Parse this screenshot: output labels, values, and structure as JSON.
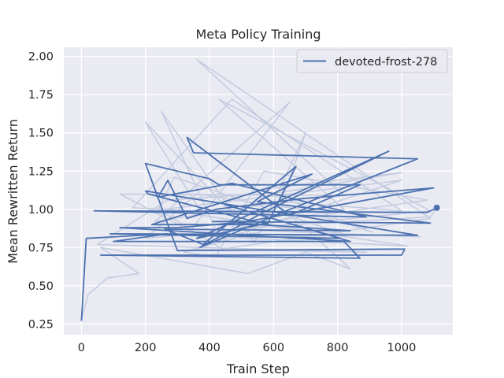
{
  "chart_data": {
    "type": "line",
    "title": "Meta Policy Training",
    "xlabel": "Train Step",
    "ylabel": "Mean Rewritten Return",
    "xlim": [
      -55,
      1160
    ],
    "ylim": [
      0.18,
      2.06
    ],
    "xticks": [
      "0",
      "200",
      "400",
      "600",
      "800",
      "1000"
    ],
    "yticks": [
      "0.25",
      "0.50",
      "0.75",
      "1.00",
      "1.25",
      "1.50",
      "1.75",
      "2.00"
    ],
    "grid": true,
    "legend_position": "top-right",
    "colors": {
      "series": "#4c72b0",
      "raw": "#c3cbe0",
      "background": "#eaeaf2",
      "grid": "#ffffff"
    },
    "series": [
      {
        "name": "devoted-frost-278",
        "role": "smoothed",
        "x": [
          0,
          15,
          270,
          100,
          820,
          870,
          60,
          1000,
          1010,
          300,
          200,
          400,
          430,
          870,
          650,
          330,
          350,
          1050,
          640,
          370,
          560,
          960,
          360,
          580,
          540,
          210,
          200,
          1050,
          90,
          810,
          450,
          840,
          120,
          300,
          530,
          410,
          1090,
          550,
          720,
          220,
          580,
          670,
          380,
          260,
          840,
          490,
          1100,
          690,
          420,
          330,
          270,
          240,
          470,
          890,
          40,
          1080,
          1110
        ],
        "y": [
          0.27,
          0.81,
          0.84,
          0.79,
          0.79,
          0.68,
          0.7,
          0.7,
          0.74,
          0.73,
          1.3,
          1.2,
          1.16,
          1.16,
          0.96,
          1.47,
          1.37,
          1.33,
          0.99,
          0.75,
          0.97,
          1.38,
          0.81,
          0.91,
          0.92,
          1.1,
          1.12,
          0.83,
          0.84,
          0.81,
          1.03,
          0.79,
          0.88,
          0.88,
          0.92,
          0.92,
          0.91,
          1.05,
          1.23,
          0.9,
          0.9,
          1.28,
          0.77,
          0.87,
          0.86,
          0.91,
          1.14,
          1.07,
          1.0,
          0.94,
          1.19,
          1.08,
          1.17,
          0.95,
          0.99,
          0.98,
          1.01
        ]
      },
      {
        "name": "",
        "role": "raw",
        "x": [
          0,
          20,
          80,
          180,
          60,
          520,
          700,
          840,
          810,
          620,
          700,
          540,
          250,
          430,
          1020,
          380,
          200,
          540,
          830,
          290,
          240,
          440,
          1090,
          360,
          820,
          120,
          340,
          650,
          230,
          630,
          1000,
          470,
          160,
          760,
          910,
          560,
          1000,
          620,
          270,
          50,
          890,
          350,
          570,
          1060,
          700,
          260,
          1000,
          320,
          420,
          570,
          1080,
          780,
          360,
          200,
          1090,
          430,
          820,
          490,
          1090,
          1110
        ],
        "y": [
          0.27,
          0.44,
          0.55,
          0.58,
          0.75,
          0.58,
          0.72,
          0.61,
          0.67,
          1.02,
          1.5,
          0.78,
          1.64,
          0.82,
          0.76,
          0.96,
          1.57,
          0.82,
          0.83,
          1.21,
          1.0,
          0.74,
          0.94,
          1.98,
          1.09,
          1.1,
          0.86,
          1.7,
          0.92,
          1.05,
          0.99,
          1.72,
          1.01,
          0.95,
          0.85,
          1.13,
          1.24,
          1.11,
          1.06,
          0.77,
          0.72,
          0.74,
          0.86,
          0.82,
          0.85,
          1.0,
          1.19,
          0.72,
          0.69,
          1.25,
          1.06,
          0.97,
          1.1,
          0.81,
          0.99,
          1.72,
          1.0,
          0.88,
          0.95,
          1.01
        ]
      }
    ]
  }
}
